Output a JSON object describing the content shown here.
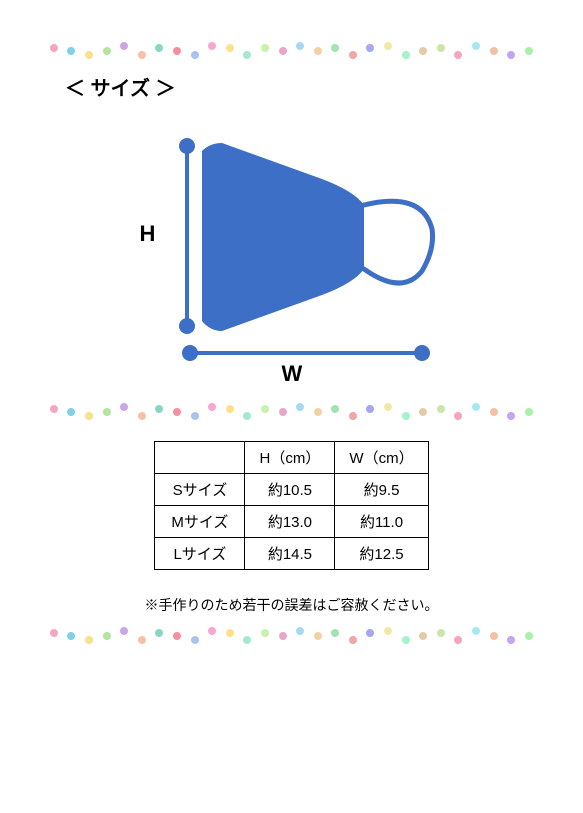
{
  "title": "＜ サイズ ＞",
  "labels": {
    "h": "H",
    "w": "W"
  },
  "diagram": {
    "mask_fill": "#3d6fc6",
    "mask_outline": "#3d6fc6",
    "strap_stroke": "#3d6fc6",
    "measure_line": "#3d6fc6",
    "measure_dot": "#3d6fc6"
  },
  "table": {
    "columns": [
      "",
      "H（cm）",
      "W（cm）"
    ],
    "rows": [
      [
        "Sサイズ",
        "約10.5",
        "約9.5"
      ],
      [
        "Mサイズ",
        "約13.0",
        "約11.0"
      ],
      [
        "Lサイズ",
        "約14.5",
        "約12.5"
      ]
    ]
  },
  "note": "※手作りのため若干の誤差はご容赦ください。",
  "garland": {
    "colors": [
      "#f7a6c0",
      "#7fd1e8",
      "#f9e08a",
      "#b3e59f",
      "#c9a6e8",
      "#f7c1a6",
      "#87d8c3",
      "#f58ea0",
      "#a6c3f2",
      "#f9a6d1",
      "#ffe08a",
      "#a6e8d1",
      "#c8f2a6",
      "#e8a6c9",
      "#a6d8f2",
      "#f2d1a6",
      "#9fe5b3",
      "#f2a6a6",
      "#a6a6f2",
      "#f2e8a6",
      "#a6f2c9",
      "#e8c9a6",
      "#c9e8a6",
      "#f2a6c0",
      "#a6e8f2",
      "#f2c0a6",
      "#c0a6f2",
      "#a6f2a6"
    ],
    "count": 28
  }
}
